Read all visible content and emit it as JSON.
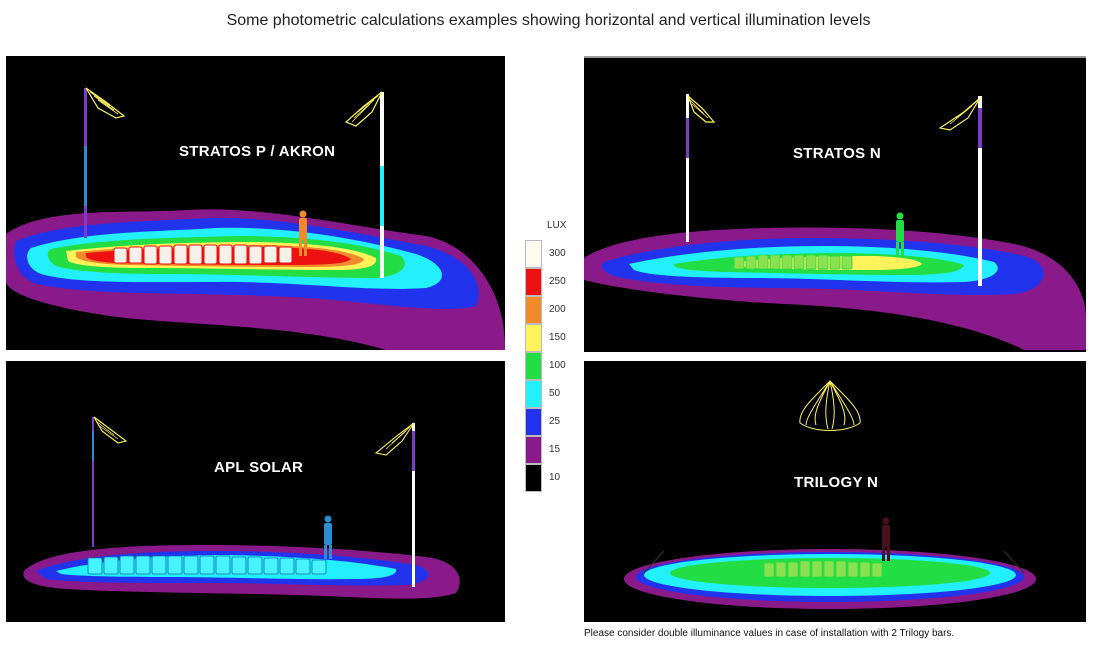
{
  "title": "Some photometric calculations examples showing horizontal and vertical illumination levels",
  "panels": [
    {
      "label": "STRATOS P / AKRON"
    },
    {
      "label": "STRATOS N"
    },
    {
      "label": "APL SOLAR"
    },
    {
      "label": "TRILOGY N"
    }
  ],
  "legend": {
    "title": "LUX",
    "items": [
      {
        "value": "300",
        "color": "#fffaf0"
      },
      {
        "value": "250",
        "color": "#ee1111"
      },
      {
        "value": "200",
        "color": "#f08a2a"
      },
      {
        "value": "150",
        "color": "#fff25a"
      },
      {
        "value": "100",
        "color": "#22dd44"
      },
      {
        "value": "50",
        "color": "#22f0ff"
      },
      {
        "value": "25",
        "color": "#2233ee"
      },
      {
        "value": "15",
        "color": "#8a1a8a"
      },
      {
        "value": "10",
        "color": "#000000"
      }
    ]
  },
  "footnote": "Please consider double  illuminance values in case of installation with 2 Trilogy bars."
}
